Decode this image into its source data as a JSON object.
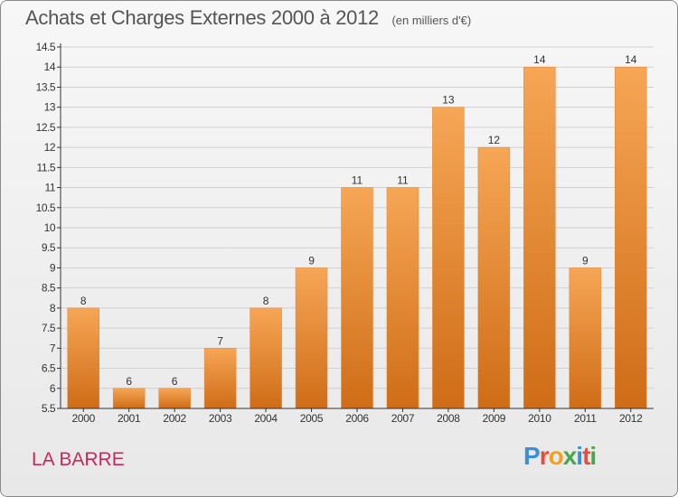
{
  "title": "Achats et Charges Externes 2000 à 2012",
  "subtitle": "(en milliers d'€)",
  "commune": "LA BARRE",
  "brand": {
    "text": "Proxiti",
    "letter_colors": [
      "#3a8fd6",
      "#e84c3d",
      "#f0a21e",
      "#47a84a",
      "#3a8fd6",
      "#e84c3d",
      "#47a84a"
    ]
  },
  "colors": {
    "bar_light": "#f6a655",
    "bar_dark": "#cf6c17",
    "axis": "#333333",
    "grid": "#d0d0d0",
    "title": "#555555",
    "commune": "#c8285f"
  },
  "chart_data": {
    "type": "bar",
    "title": "Achats et Charges Externes 2000 à 2012",
    "subtitle": "(en milliers d'€)",
    "categories": [
      "2000",
      "2001",
      "2002",
      "2003",
      "2004",
      "2005",
      "2006",
      "2007",
      "2008",
      "2009",
      "2010",
      "2011",
      "2012"
    ],
    "values": [
      8,
      6,
      6,
      7,
      8,
      9,
      11,
      11,
      13,
      12,
      14,
      9,
      14
    ],
    "data_labels": [
      "8",
      "6",
      "6",
      "7",
      "8",
      "9",
      "11",
      "11",
      "13",
      "12",
      "14",
      "9",
      "14"
    ],
    "ylim": [
      5.5,
      14.5
    ],
    "yticks": [
      5.5,
      6,
      6.5,
      7,
      7.5,
      8,
      8.5,
      9,
      9.5,
      10,
      10.5,
      11,
      11.5,
      12,
      12.5,
      13,
      13.5,
      14,
      14.5
    ],
    "ytick_labels": [
      "5.5",
      "6",
      "6.5",
      "7",
      "7.5",
      "8",
      "8.5",
      "9",
      "9.5",
      "10",
      "10.5",
      "11",
      "11.5",
      "12",
      "12.5",
      "13",
      "13.5",
      "14",
      "14.5"
    ],
    "xlabel": "",
    "ylabel": "",
    "grid": true
  }
}
